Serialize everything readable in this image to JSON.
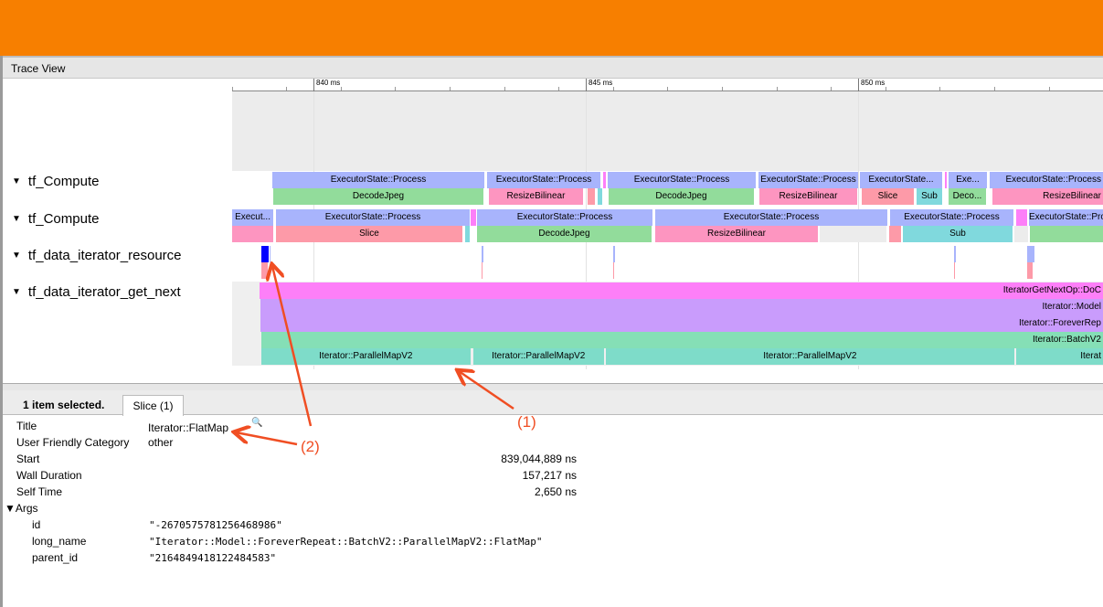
{
  "window": {
    "title": "Trace View"
  },
  "ruler": {
    "ticks": [
      {
        "t": 840,
        "label": "840 ms"
      },
      {
        "t": 845,
        "label": "845 ms"
      },
      {
        "t": 850,
        "label": "850 ms"
      }
    ],
    "view_start_ms": 838.5,
    "view_end_ms": 854.5
  },
  "colors": {
    "header": "#f77f00",
    "process": "#a8b4fc",
    "decode": "#92dc9b",
    "resize": "#fd95c0",
    "slice": "#fd9aa8",
    "sub": "#80d9dd",
    "pink": "#fd7ff8",
    "purple": "#c99cfc",
    "batch": "#85dfb6",
    "pmap": "#7edcc9",
    "selected": "#0000ff",
    "annotation": "#f04e23"
  },
  "tracks": [
    {
      "label": "tf_Compute",
      "rows": [
        [
          {
            "s": 839.245,
            "e": 843.154,
            "t": "ExecutorState::Process",
            "c": "process"
          },
          {
            "s": 843.188,
            "e": 845.285,
            "t": "ExecutorState::Process",
            "c": "process"
          },
          {
            "s": 845.319,
            "e": 845.386,
            "t": "",
            "c": "pink"
          },
          {
            "s": 845.403,
            "e": 848.138,
            "t": "ExecutorState::Process",
            "c": "process"
          },
          {
            "s": 848.171,
            "e": 850.017,
            "t": "ExecutorState::Process",
            "c": "process"
          },
          {
            "s": 850.034,
            "e": 851.56,
            "t": "ExecutorState...",
            "c": "process"
          },
          {
            "s": 851.594,
            "e": 851.644,
            "t": "",
            "c": "pink"
          },
          {
            "s": 851.661,
            "e": 852.383,
            "t": "Exe...",
            "c": "process"
          },
          {
            "s": 852.416,
            "e": 856.5,
            "t": "ExecutorState::Process",
            "c": "process"
          }
        ],
        [
          {
            "s": 839.262,
            "e": 843.138,
            "t": "DecodeJpeg",
            "c": "decode"
          },
          {
            "s": 843.221,
            "e": 844.966,
            "t": "ResizeBilinear",
            "c": "resize"
          },
          {
            "s": 845.034,
            "e": 845.185,
            "t": "",
            "c": "slice"
          },
          {
            "s": 845.218,
            "e": 845.319,
            "t": "",
            "c": "sub"
          },
          {
            "s": 845.419,
            "e": 848.104,
            "t": "DecodeJpeg",
            "c": "decode"
          },
          {
            "s": 848.188,
            "e": 850.0,
            "t": "ResizeBilinear",
            "c": "resize"
          },
          {
            "s": 850.067,
            "e": 851.04,
            "t": "Slice",
            "c": "slice"
          },
          {
            "s": 851.074,
            "e": 851.56,
            "t": "Sub",
            "c": "sub"
          },
          {
            "s": 851.661,
            "e": 852.366,
            "t": "Deco...",
            "c": "decode"
          },
          {
            "s": 852.466,
            "e": 856.5,
            "t": "ResizeBilinear",
            "c": "resize"
          }
        ]
      ]
    },
    {
      "label": "tf_Compute",
      "rows": [
        [
          {
            "s": 838.507,
            "e": 839.279,
            "t": "Execut...",
            "c": "process"
          },
          {
            "s": 839.312,
            "e": 842.886,
            "t": "ExecutorState::Process",
            "c": "process"
          },
          {
            "s": 842.886,
            "e": 843.003,
            "t": "",
            "c": "pink"
          },
          {
            "s": 843.003,
            "e": 846.242,
            "t": "ExecutorState::Process",
            "c": "process"
          },
          {
            "s": 846.275,
            "e": 850.554,
            "t": "ExecutorState::Process",
            "c": "process"
          },
          {
            "s": 850.587,
            "e": 852.869,
            "t": "ExecutorState::Process",
            "c": "process"
          },
          {
            "s": 852.903,
            "e": 853.121,
            "t": "",
            "c": "pink"
          },
          {
            "s": 853.138,
            "e": 856.5,
            "t": "ExecutorState::Process",
            "c": "process"
          }
        ],
        [
          {
            "s": 838.507,
            "e": 839.279,
            "t": "",
            "c": "resize"
          },
          {
            "s": 839.312,
            "e": 842.752,
            "t": "Slice",
            "c": "slice"
          },
          {
            "s": 842.785,
            "e": 842.886,
            "t": "",
            "c": "sub"
          },
          {
            "s": 843.003,
            "e": 846.225,
            "t": "DecodeJpeg",
            "c": "decode"
          },
          {
            "s": 846.275,
            "e": 849.279,
            "t": "ResizeBilinear",
            "c": "resize"
          },
          {
            "s": 849.296,
            "e": 850.537,
            "t": "",
            "c": "gap"
          },
          {
            "s": 850.57,
            "e": 850.805,
            "t": "",
            "c": "slice"
          },
          {
            "s": 850.822,
            "e": 852.852,
            "t": "Sub",
            "c": "sub"
          },
          {
            "s": 852.869,
            "e": 853.138,
            "t": "",
            "c": "gap"
          },
          {
            "s": 853.155,
            "e": 856.5,
            "t": "",
            "c": "decode"
          }
        ]
      ]
    },
    {
      "label": "tf_data_iterator_resource",
      "rows": [
        [
          {
            "s": 839.044,
            "e": 839.201,
            "t": "",
            "c": "selected"
          },
          {
            "s": 839.201,
            "e": 839.23,
            "t": "",
            "c": "process"
          },
          {
            "s": 843.09,
            "e": 843.14,
            "t": "",
            "c": "process"
          },
          {
            "s": 845.5,
            "e": 845.55,
            "t": "",
            "c": "process"
          },
          {
            "s": 851.76,
            "e": 851.81,
            "t": "",
            "c": "process"
          },
          {
            "s": 853.1,
            "e": 853.25,
            "t": "",
            "c": "process"
          }
        ],
        [
          {
            "s": 839.044,
            "e": 839.18,
            "t": "",
            "c": "slice"
          },
          {
            "s": 843.09,
            "e": 843.12,
            "t": "",
            "c": "slice"
          },
          {
            "s": 845.5,
            "e": 845.53,
            "t": "",
            "c": "slice"
          },
          {
            "s": 851.76,
            "e": 851.78,
            "t": "",
            "c": "slice"
          },
          {
            "s": 853.1,
            "e": 853.22,
            "t": "",
            "c": "slice"
          }
        ]
      ]
    },
    {
      "label": "tf_data_iterator_get_next",
      "rows": [
        [
          {
            "s": 839.01,
            "e": 870,
            "t": "IteratorGetNextOp::DoC",
            "c": "pink"
          }
        ],
        [
          {
            "s": 839.03,
            "e": 870,
            "t": "Iterator::Model",
            "c": "purple"
          }
        ],
        [
          {
            "s": 839.03,
            "e": 870,
            "t": "Iterator::ForeverRep",
            "c": "purple"
          }
        ],
        [
          {
            "s": 839.04,
            "e": 870,
            "t": "Iterator::BatchV2",
            "c": "batch"
          }
        ],
        [
          {
            "s": 839.04,
            "e": 842.9,
            "t": "Iterator::ParallelMapV2",
            "c": "pmap"
          },
          {
            "s": 842.93,
            "e": 845.35,
            "t": "Iterator::ParallelMapV2",
            "c": "pmap"
          },
          {
            "s": 845.37,
            "e": 852.88,
            "t": "Iterator::ParallelMapV2",
            "c": "pmap"
          },
          {
            "s": 852.9,
            "e": 870,
            "t": "Iterat",
            "c": "pmap"
          }
        ]
      ]
    }
  ],
  "details": {
    "selected_count": "1 item selected.",
    "tab": "Slice (1)",
    "fields": [
      {
        "k": "Title",
        "v": "Iterator::FlatMap"
      },
      {
        "k": "User Friendly Category",
        "v": "other"
      },
      {
        "k": "Start",
        "v": "839,044,889 ns"
      },
      {
        "k": "Wall Duration",
        "v": "157,217 ns"
      },
      {
        "k": "Self Time",
        "v": "2,650 ns"
      }
    ],
    "args_label": "▼Args",
    "args": [
      {
        "k": "id",
        "v": "\"-2670575781256468986\""
      },
      {
        "k": "long_name",
        "v": "\"Iterator::Model::ForeverRepeat::BatchV2::ParallelMapV2::FlatMap\""
      },
      {
        "k": "parent_id",
        "v": "\"2164849418122484583\""
      }
    ]
  },
  "annotations": {
    "a1": "(1)",
    "a2": "(2)"
  }
}
